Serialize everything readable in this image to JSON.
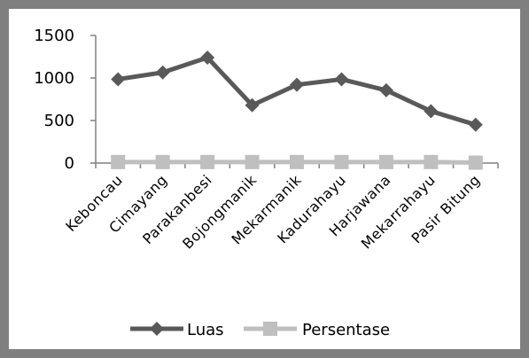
{
  "chart_data": {
    "type": "line",
    "categories": [
      "Keboncau",
      "Cimayang",
      "Parakanbesi",
      "Bojongmanik",
      "Mekarmanik",
      "Kadurahayu",
      "Harjawana",
      "Mekarrahayu",
      "Pasir Bitung"
    ],
    "series": [
      {
        "name": "Luas",
        "values": [
          985,
          1065,
          1240,
          680,
          920,
          985,
          855,
          610,
          450
        ],
        "color": "#595959",
        "marker": "diamond"
      },
      {
        "name": "Persentase",
        "values": [
          12,
          12,
          12,
          12,
          12,
          12,
          12,
          12,
          5
        ],
        "color": "#bfbfbf",
        "marker": "square"
      }
    ],
    "ylim": [
      0,
      1500
    ],
    "yticks": [
      0,
      500,
      1000,
      1500
    ],
    "ytick_labels": [
      "0",
      "500",
      "1000",
      "1500"
    ],
    "title": "",
    "xlabel": "",
    "ylabel": "",
    "grid": false,
    "legend": "bottom"
  }
}
